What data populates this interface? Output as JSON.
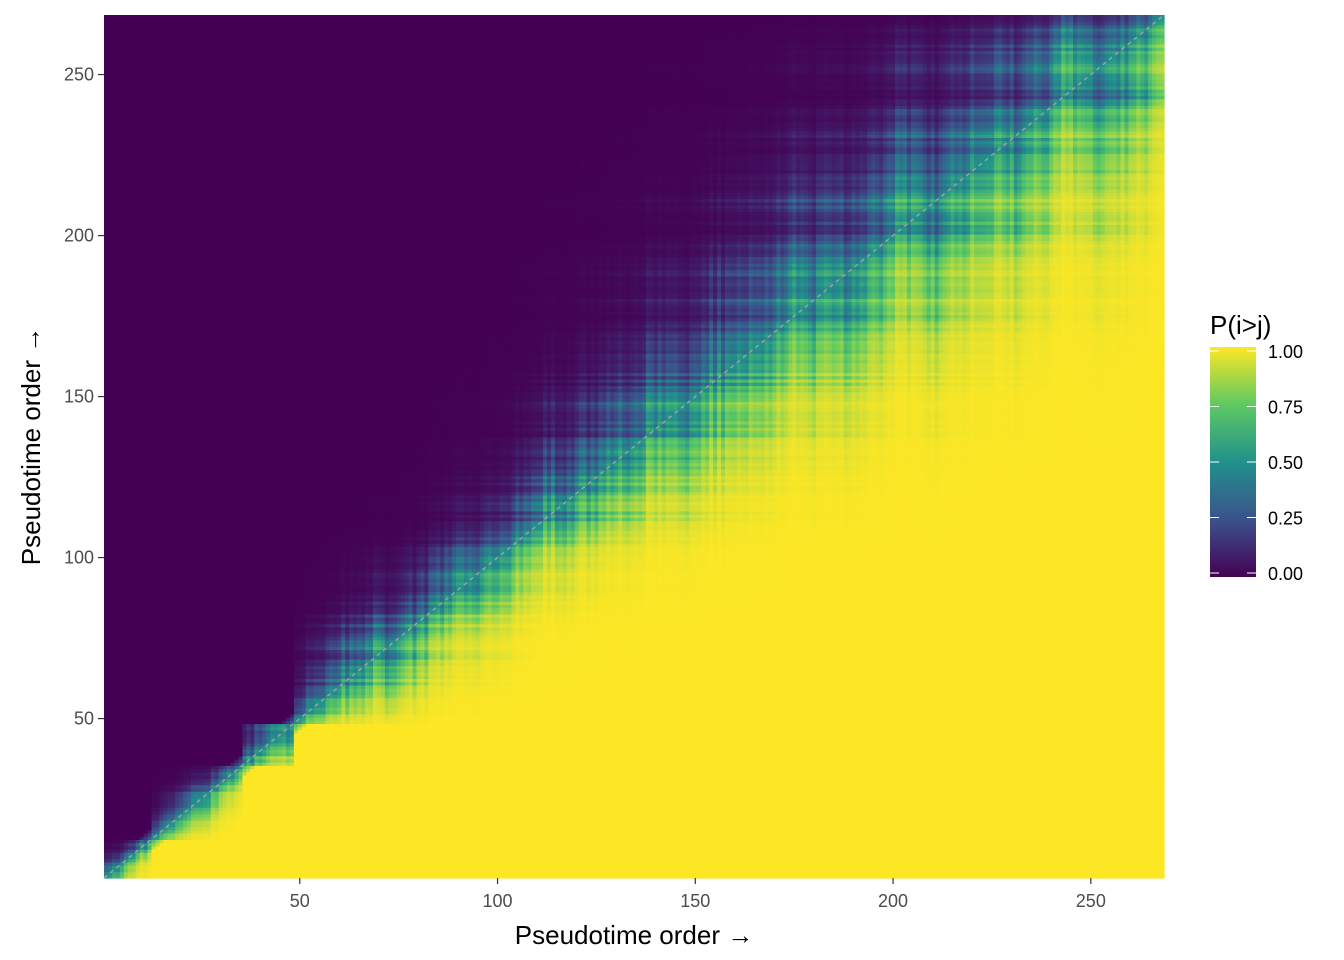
{
  "chart_data": {
    "type": "heatmap",
    "title": "",
    "xlabel": "Pseudotime order →",
    "ylabel": "Pseudotime order →",
    "n_cells": 268,
    "xlim": [
      0.5,
      268.5
    ],
    "ylim": [
      0.5,
      268.5
    ],
    "x_ticks": [
      50,
      100,
      150,
      200,
      250
    ],
    "y_ticks": [
      50,
      100,
      150,
      200,
      250
    ],
    "x_tick_labels": [
      "50",
      "100",
      "150",
      "200",
      "250"
    ],
    "y_tick_labels": [
      "50",
      "100",
      "150",
      "200",
      "250"
    ],
    "diagonal_reference_line": true,
    "diagonal_color": "#a0a0a0",
    "grid": false,
    "legend": {
      "title": "P(i>j)",
      "placement": "right",
      "breaks": [
        0.0,
        0.25,
        0.5,
        0.75,
        1.0
      ],
      "labels": [
        "0.00",
        "0.25",
        "0.50",
        "0.75",
        "1.00"
      ]
    },
    "colormap": "viridis",
    "colors": [
      "#440154",
      "#3b528b",
      "#21918c",
      "#5ec962",
      "#fde725"
    ],
    "block_boundaries": [
      12,
      35,
      48
    ],
    "description_values": {
      "value_below_diagonal": 1.0,
      "value_above_diagonal": 0.0,
      "value_on_diagonal": 0.5
    }
  }
}
